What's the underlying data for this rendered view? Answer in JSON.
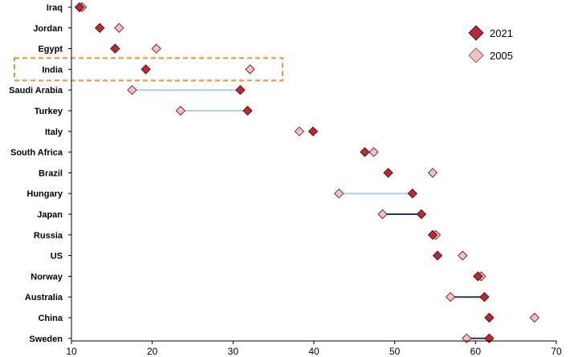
{
  "chart_data": {
    "type": "scatter",
    "categories": [
      "Iraq",
      "Jordan",
      "Egypt",
      "India",
      "Saudi Arabia",
      "Turkey",
      "Italy",
      "South Africa",
      "Brazil",
      "Hungary",
      "Japan",
      "Russia",
      "US",
      "Norway",
      "Australia",
      "China",
      "Sweden"
    ],
    "series": [
      {
        "name": "2021",
        "values": [
          11.0,
          13.5,
          15.4,
          19.2,
          30.9,
          31.8,
          39.9,
          46.3,
          49.2,
          52.2,
          53.3,
          54.7,
          55.3,
          60.3,
          61.1,
          61.7,
          61.7
        ],
        "color": "#c0282e"
      },
      {
        "name": "2005",
        "values": [
          11.3,
          15.9,
          20.5,
          32.1,
          17.5,
          23.5,
          38.2,
          47.4,
          54.7,
          43.1,
          48.5,
          55.1,
          58.4,
          60.7,
          56.9,
          67.3,
          58.9
        ],
        "color": "#f4c2c4"
      }
    ],
    "connectors": [
      {
        "category": "Saudi Arabia",
        "color": "#a8d0ea"
      },
      {
        "category": "Turkey",
        "color": "#a8d0ea"
      },
      {
        "category": "Hungary",
        "color": "#a8d0ea"
      },
      {
        "category": "Japan",
        "color": "#1f3a5f"
      },
      {
        "category": "Australia",
        "color": "#1f3a5f"
      },
      {
        "category": "Sweden",
        "color": "#1f3a5f"
      }
    ],
    "highlight": {
      "category": "India",
      "color": "#f0922e",
      "style": "dashed"
    },
    "xlim": [
      10,
      70
    ],
    "xticks": [
      "10",
      "20",
      "30",
      "40",
      "50",
      "60",
      "70"
    ],
    "title": "",
    "xlabel": "",
    "ylabel": "",
    "grid": false,
    "legend_position": "top-right"
  }
}
